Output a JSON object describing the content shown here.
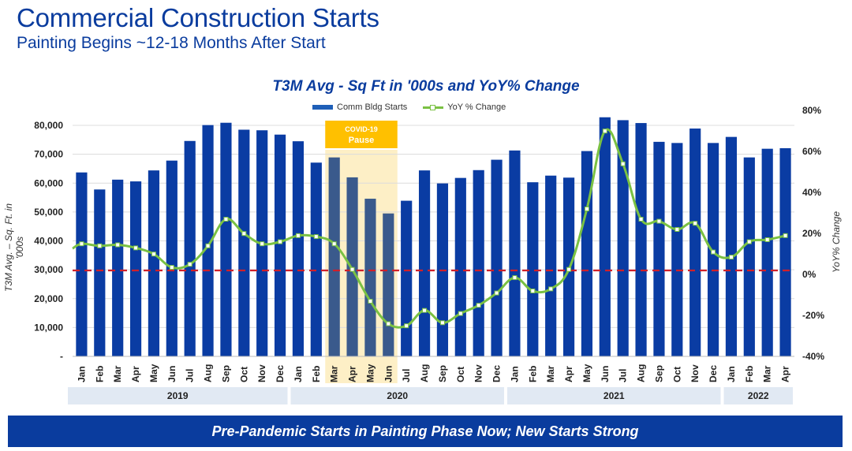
{
  "header": {
    "title": "Commercial Construction Starts",
    "subtitle": "Painting Begins ~12-18 Months After Start"
  },
  "footer": {
    "text": "Pre-Pandemic Starts in Painting Phase Now; New Starts Strong"
  },
  "colors": {
    "title": "#0a3c9e",
    "bar": "#0a3ca3",
    "bar_highlight": "#3a5a8c",
    "line": "#7ac143",
    "zero_line": "#d0202a",
    "annotation_box": "#ffc000",
    "annotation_band": "#fdefc6",
    "year_band": "#e1e9f3",
    "footer": "#0a3c9e"
  },
  "chart_data": {
    "type": "bar",
    "title": "T3M Avg - Sq Ft in '000s and YoY% Change",
    "xlabel": "",
    "ylabel": "T3M Avg. – Sq. Ft. in '000s",
    "y2label": "YoY% Change",
    "ylim": [
      0,
      80000
    ],
    "y2lim": [
      -40,
      80
    ],
    "yticks": [
      "-",
      "10,000",
      "20,000",
      "30,000",
      "40,000",
      "50,000",
      "60,000",
      "70,000",
      "80,000"
    ],
    "y2ticks": [
      "-40%",
      "-20%",
      "0%",
      "20%",
      "40%",
      "60%",
      "80%"
    ],
    "grid": true,
    "legend_position": "top-center",
    "legend": [
      "Comm Bldg Starts",
      "YoY % Change"
    ],
    "categories": [
      "Jan",
      "Feb",
      "Mar",
      "Apr",
      "May",
      "Jun",
      "Jul",
      "Aug",
      "Sep",
      "Oct",
      "Nov",
      "Dec",
      "Jan",
      "Feb",
      "Mar",
      "Apr",
      "May",
      "Jun",
      "Jul",
      "Aug",
      "Sep",
      "Oct",
      "Nov",
      "Dec",
      "Jan",
      "Feb",
      "Mar",
      "Apr",
      "May",
      "Jun",
      "Jul",
      "Aug",
      "Sep",
      "Oct",
      "Nov",
      "Dec",
      "Jan",
      "Feb",
      "Mar",
      "Apr"
    ],
    "year_groups": [
      {
        "label": "2019",
        "count": 12
      },
      {
        "label": "2020",
        "count": 12
      },
      {
        "label": "2021",
        "count": 12
      },
      {
        "label": "2022",
        "count": 4
      }
    ],
    "series": [
      {
        "name": "Comm Bldg Starts",
        "type": "bar",
        "axis": "left",
        "values": [
          63700,
          57800,
          61200,
          60600,
          64400,
          67800,
          74600,
          80100,
          80900,
          78500,
          78300,
          76800,
          74500,
          67100,
          68900,
          62000,
          54600,
          49500,
          53900,
          64400,
          59900,
          61800,
          64500,
          68100,
          71300,
          60300,
          62600,
          61900,
          71100,
          82800,
          81800,
          80800,
          74300,
          73900,
          78900,
          73900,
          76000,
          68900,
          71900,
          72100
        ]
      },
      {
        "name": "YoY % Change",
        "type": "line",
        "axis": "right",
        "values": [
          13,
          12,
          12.5,
          11,
          8,
          1.5,
          3,
          12,
          25,
          18,
          13,
          14,
          17,
          16.5,
          13,
          0.5,
          -15,
          -26,
          -27,
          -19.5,
          -25.5,
          -21,
          -17,
          -11,
          -3.5,
          -10,
          -9,
          0.5,
          30,
          68,
          52,
          25,
          24,
          20,
          23,
          9,
          6.5,
          14,
          15,
          17
        ]
      }
    ],
    "reference_line": {
      "axis": "right",
      "value": 0,
      "style": "dashed"
    },
    "annotations": [
      {
        "label_line1": "COVID-19",
        "label_line2": "Pause",
        "start_index": 14,
        "end_index": 17
      }
    ]
  }
}
